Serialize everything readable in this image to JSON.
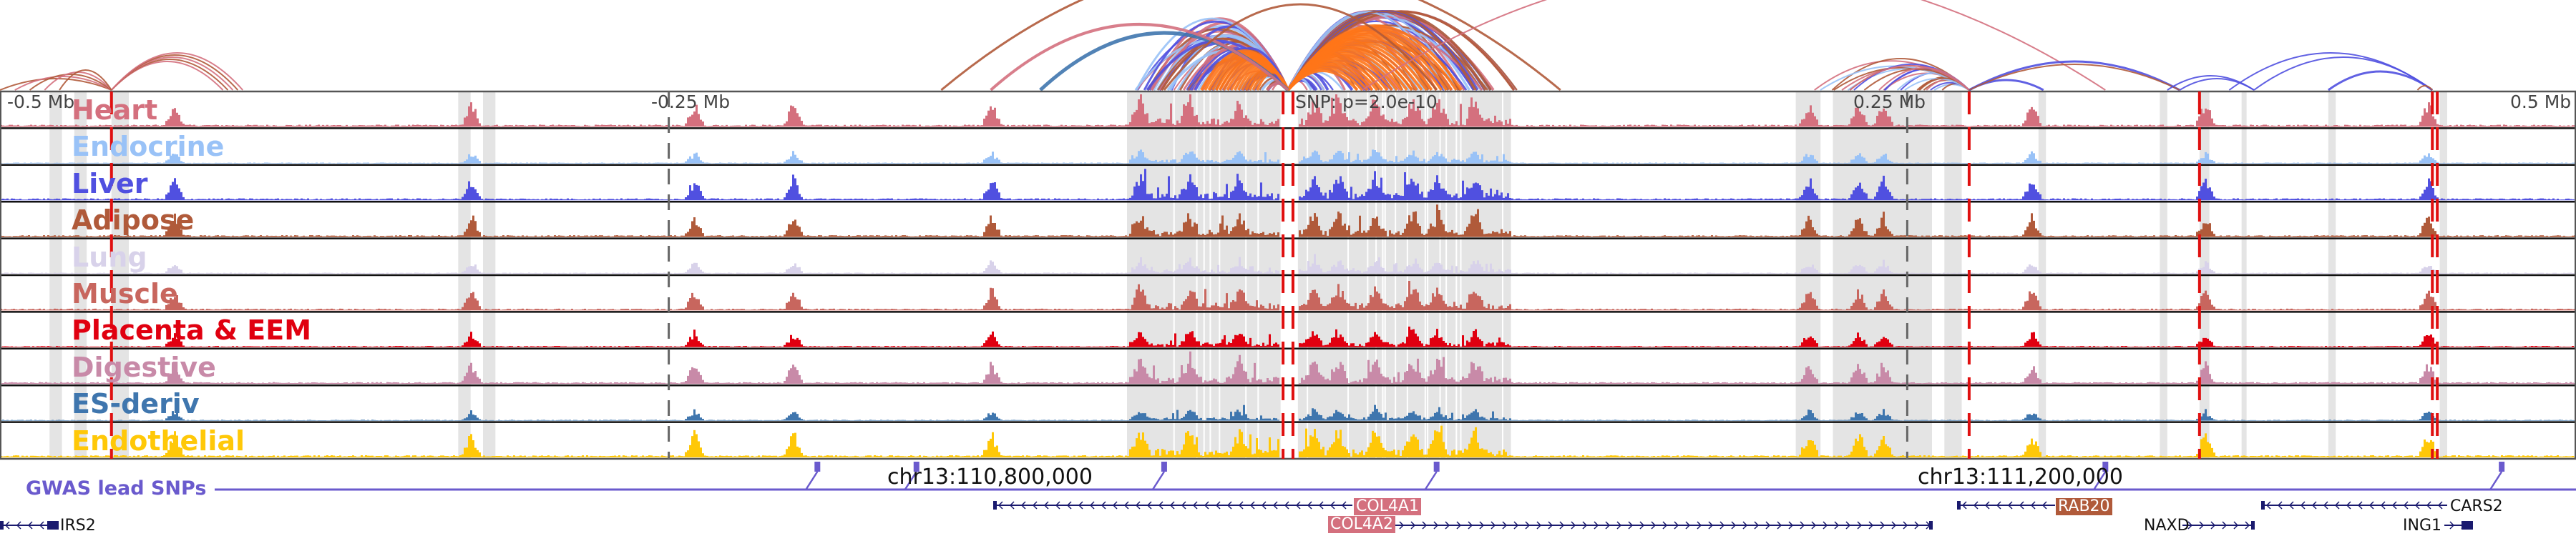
{
  "chart_data": {
    "type": "area",
    "title": "",
    "description": "Genome browser view: chromatin interaction arcs, tissue accessibility tracks, GWAS lead SNPs and genes around a lead SNP on chr13",
    "focus_snp": {
      "label": "SNP: p=2.0e-10",
      "offset_mb": 0.0
    },
    "x_axis": {
      "unit": "Mb offset from SNP",
      "range": [
        -0.52,
        0.52
      ],
      "ticks": [
        {
          "offset": -0.5,
          "label": "-0.5 Mb"
        },
        {
          "offset": -0.25,
          "label": "-0.25 Mb"
        },
        {
          "offset": 0.25,
          "label": "0.25 Mb"
        },
        {
          "offset": 0.5,
          "label": "0.5 Mb"
        }
      ]
    },
    "coordinate_labels": [
      {
        "label": "chr13:110,800,000",
        "offset": -0.27
      },
      {
        "label": "chr13:111,200,000",
        "offset": 0.13
      }
    ],
    "tracks": [
      {
        "name": "Heart",
        "color": "#d4707e"
      },
      {
        "name": "Endocrine",
        "color": "#99c2f7"
      },
      {
        "name": "Liver",
        "color": "#5050e0"
      },
      {
        "name": "Adipose",
        "color": "#b05a3a"
      },
      {
        "name": "Lung",
        "color": "#d8d2ea"
      },
      {
        "name": "Muscle",
        "color": "#c8665e"
      },
      {
        "name": "Placenta & EEM",
        "color": "#e00010"
      },
      {
        "name": "Digestive",
        "color": "#c88aa8"
      },
      {
        "name": "ES-deriv",
        "color": "#3f76ae"
      },
      {
        "name": "Endothelial",
        "color": "#ffc808"
      }
    ],
    "highlight_regions_mb": [
      [
        -0.5,
        -0.495
      ],
      [
        -0.49,
        -0.485
      ],
      [
        -0.475,
        -0.468
      ],
      [
        -0.335,
        -0.33
      ],
      [
        -0.325,
        -0.32
      ],
      [
        -0.065,
        -0.003
      ],
      [
        0.004,
        0.09
      ],
      [
        0.205,
        0.215
      ],
      [
        0.22,
        0.26
      ],
      [
        0.265,
        0.272
      ],
      [
        0.303,
        0.306
      ],
      [
        0.352,
        0.355
      ],
      [
        0.368,
        0.372
      ],
      [
        0.385,
        0.387
      ],
      [
        0.42,
        0.423
      ],
      [
        0.465,
        0.468
      ]
    ],
    "red_markers_mb": [
      -0.475,
      -0.002,
      0.002,
      0.275,
      0.368,
      0.462,
      0.464
    ],
    "gwas_lead_snps": {
      "label": "GWAS lead SNPs",
      "color": "#6a5acd",
      "offsets_mb": [
        -0.19,
        -0.15,
        -0.05,
        0.06,
        0.33,
        0.77
      ]
    },
    "arcs": {
      "colors": [
        "#d4707e",
        "#b05a3a",
        "#5050e0",
        "#99c2f7",
        "#ff7518",
        "#3f76ae"
      ],
      "anchor_offsets_mb": [
        -0.475,
        0.0,
        0.275,
        0.462
      ]
    },
    "genes": [
      {
        "name": "IRS2",
        "strand": "-",
        "highlight": false
      },
      {
        "name": "COL4A1",
        "strand": "-",
        "highlight": true,
        "highlight_color": "#d4707e"
      },
      {
        "name": "COL4A2",
        "strand": "+",
        "highlight": true,
        "highlight_color": "#d4707e"
      },
      {
        "name": "RAB20",
        "strand": "-",
        "highlight": true,
        "highlight_color": "#b05a3a"
      },
      {
        "name": "NAXD",
        "strand": "+",
        "highlight": false
      },
      {
        "name": "CARS2",
        "strand": "-",
        "highlight": false
      },
      {
        "name": "ING1",
        "strand": "+",
        "highlight": false
      }
    ]
  }
}
